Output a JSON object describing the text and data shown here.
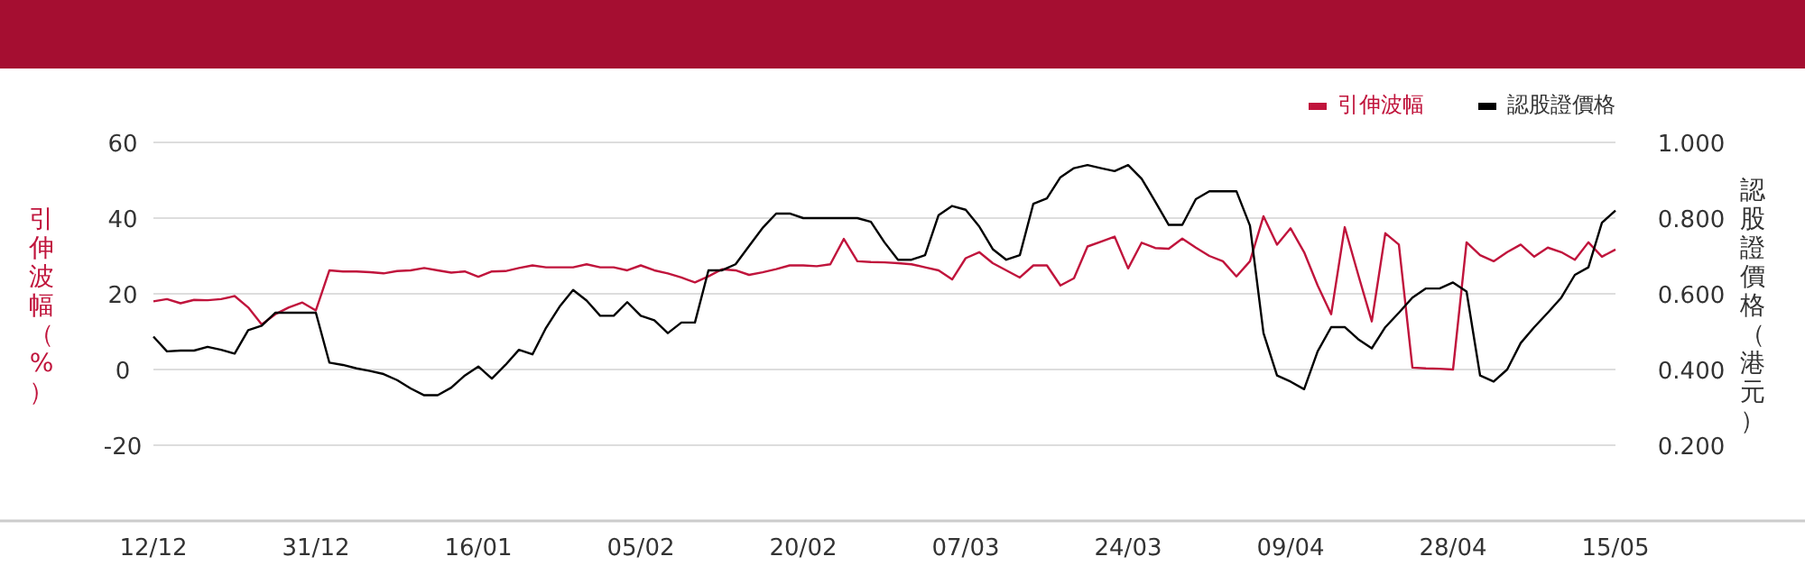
{
  "chart_data": {
    "type": "line",
    "categories": [
      "12/12",
      null,
      null,
      null,
      null,
      null,
      null,
      null,
      null,
      null,
      null,
      null,
      "31/12",
      null,
      null,
      null,
      null,
      null,
      null,
      null,
      null,
      null,
      null,
      null,
      "16/01",
      null,
      null,
      null,
      null,
      null,
      null,
      null,
      null,
      null,
      null,
      null,
      "05/02",
      null,
      null,
      null,
      null,
      null,
      null,
      null,
      null,
      null,
      null,
      null,
      "20/02",
      null,
      null,
      null,
      null,
      null,
      null,
      null,
      null,
      null,
      null,
      null,
      "07/03",
      null,
      null,
      null,
      null,
      null,
      null,
      null,
      null,
      null,
      null,
      null,
      "24/03",
      null,
      null,
      null,
      null,
      null,
      null,
      null,
      null,
      null,
      null,
      null,
      "09/04",
      null,
      null,
      null,
      null,
      null,
      null,
      null,
      null,
      null,
      null,
      null,
      "28/04",
      null,
      null,
      null,
      null,
      null,
      null,
      null,
      null,
      null,
      null,
      null,
      "15/05"
    ],
    "series": [
      {
        "name": "引伸波幅",
        "color": "#c0143c",
        "values": [
          18,
          18.6,
          17.5,
          18.4,
          18.3,
          18.6,
          19.4,
          16.4,
          11.9,
          14.6,
          16.4,
          17.7,
          15.6,
          26.2,
          25.9,
          25.9,
          25.7,
          25.4,
          26,
          26.2,
          26.8,
          26.2,
          25.6,
          25.9,
          24.5,
          25.9,
          26,
          26.8,
          27.5,
          27,
          27,
          27,
          27.8,
          27,
          27,
          26.2,
          27.5,
          26.2,
          25.4,
          24.3,
          23,
          24.6,
          26.5,
          26.2,
          25,
          25.7,
          26.5,
          27.5,
          27.5,
          27.3,
          27.8,
          34.5,
          28.6,
          28.4,
          28.3,
          28.1,
          27.8,
          27,
          26.2,
          23.8,
          29.4,
          31,
          28.1,
          26.2,
          24.3,
          27.5,
          27.5,
          22.2,
          24.1,
          32.5,
          33.8,
          35.1,
          26.7,
          33.5,
          32.1,
          31.9,
          34.6,
          32.2,
          30,
          28.6,
          24.6,
          28.6,
          40.5,
          33,
          37.3,
          31,
          22.2,
          14.6,
          37.6,
          25,
          12.7,
          36,
          33,
          0.5,
          0.3,
          0.2,
          0,
          33.6,
          30.2,
          28.6,
          31,
          33,
          29.8,
          32.2,
          31,
          29,
          33.6,
          29.8,
          31.7
        ]
      },
      {
        "name": "認股證價格",
        "color": "#000000",
        "axis": "y2",
        "values": [
          0.487,
          0.448,
          0.45,
          0.45,
          0.46,
          0.452,
          0.442,
          0.504,
          0.516,
          0.55,
          0.55,
          0.55,
          0.55,
          0.418,
          0.412,
          0.403,
          0.396,
          0.388,
          0.372,
          0.35,
          0.332,
          0.332,
          0.352,
          0.384,
          0.408,
          0.376,
          0.412,
          0.452,
          0.44,
          0.51,
          0.566,
          0.61,
          0.582,
          0.542,
          0.542,
          0.578,
          0.542,
          0.53,
          0.496,
          0.524,
          0.524,
          0.662,
          0.662,
          0.678,
          0.726,
          0.774,
          0.812,
          0.812,
          0.8,
          0.8,
          0.8,
          0.8,
          0.8,
          0.79,
          0.736,
          0.69,
          0.69,
          0.702,
          0.808,
          0.832,
          0.822,
          0.778,
          0.718,
          0.69,
          0.702,
          0.838,
          0.852,
          0.908,
          0.932,
          0.94,
          0.932,
          0.924,
          0.94,
          0.904,
          0.844,
          0.782,
          0.782,
          0.85,
          0.871,
          0.871,
          0.871,
          0.78,
          0.496,
          0.384,
          0.368,
          0.348,
          0.448,
          0.512,
          0.512,
          0.48,
          0.456,
          0.512,
          0.55,
          0.59,
          0.614,
          0.614,
          0.63,
          0.606,
          0.384,
          0.368,
          0.4,
          0.47,
          0.512,
          0.55,
          0.59,
          0.65,
          0.67,
          0.788,
          0.82
        ]
      }
    ],
    "ylabel": "引伸波幅（%）",
    "y2label": "認股證價格（港元）",
    "ylim": [
      -40,
      60
    ],
    "yticks": [
      -20,
      0,
      20,
      40,
      60
    ],
    "y2lim": [
      0,
      1
    ],
    "y2ticks": [
      {
        "value": 0.2,
        "label": "0.200"
      },
      {
        "value": 0.4,
        "label": "0.400"
      },
      {
        "value": 0.6,
        "label": "0.600"
      },
      {
        "value": 0.8,
        "label": "0.800"
      },
      {
        "value": 1,
        "label": "1.000"
      }
    ],
    "grid": "y",
    "legend": "top right",
    "marker": "none",
    "line_style": "solid"
  }
}
